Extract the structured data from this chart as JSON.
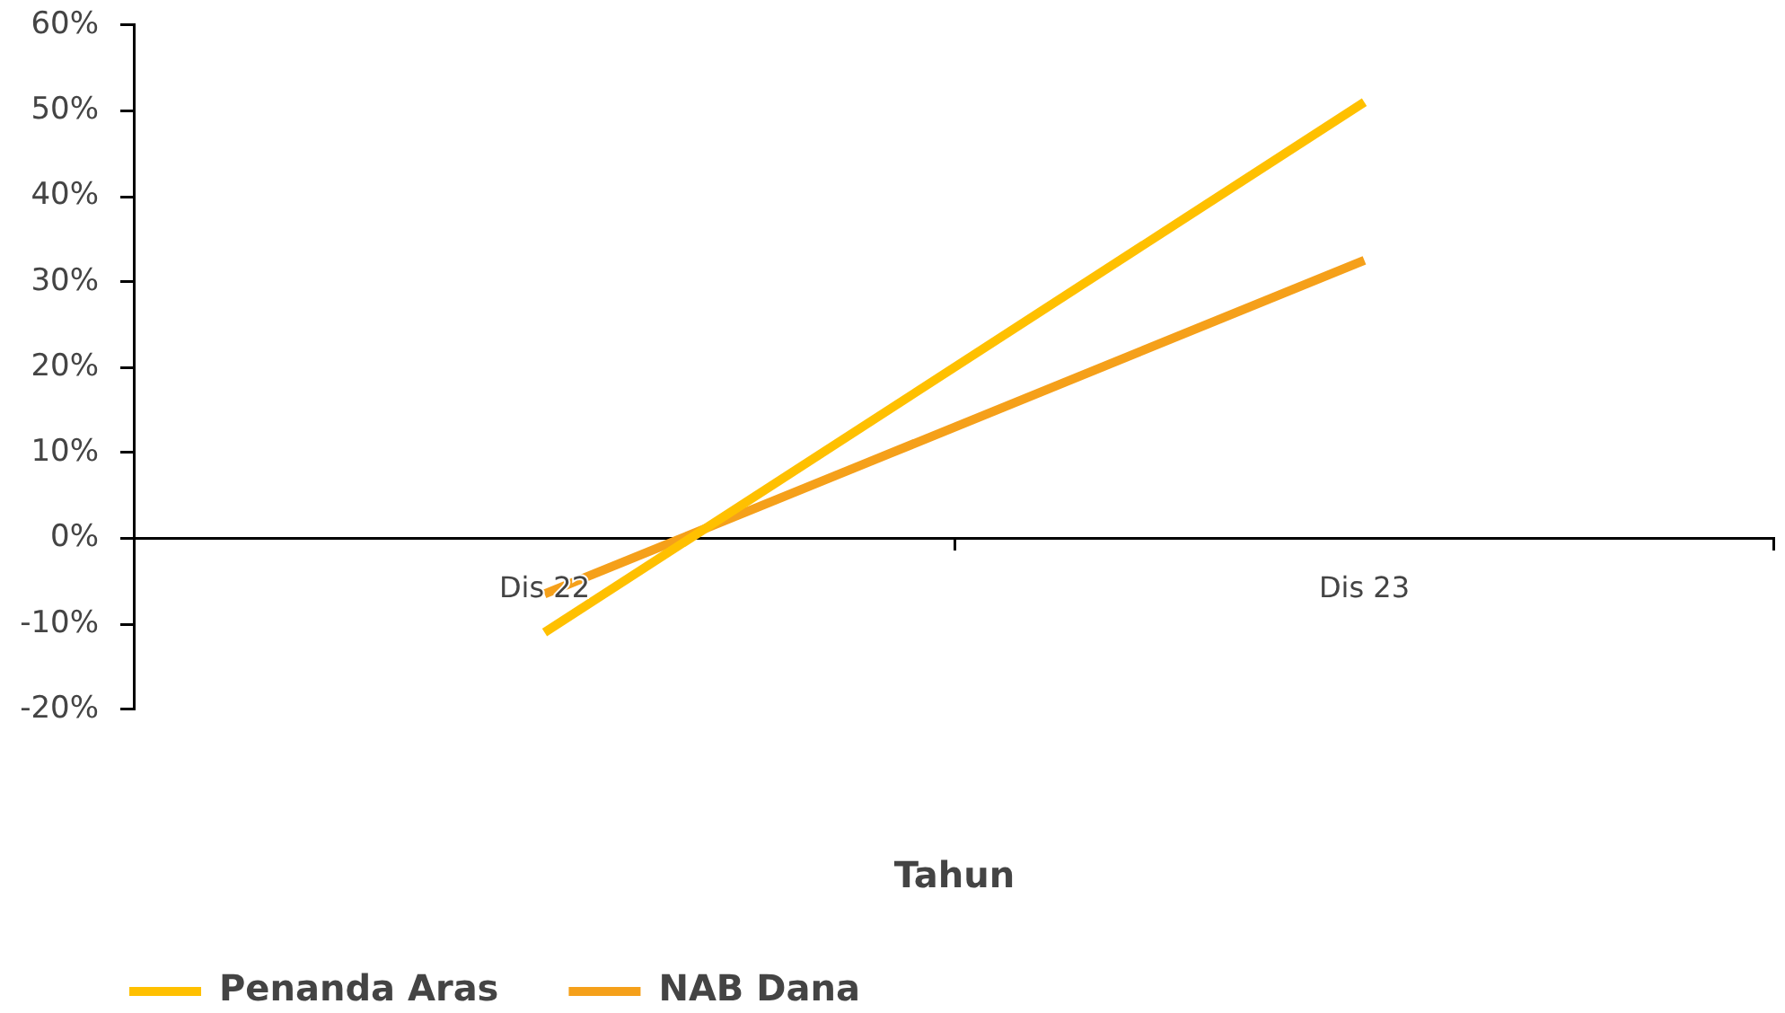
{
  "chart_data": {
    "type": "line",
    "xlabel": "Tahun",
    "categories": [
      "Dis 22",
      "Dis 23"
    ],
    "series": [
      {
        "name": "Penanda Aras",
        "color": "#ffc000",
        "values": [
          -11,
          51
        ]
      },
      {
        "name": "NAB Dana",
        "color": "#f5a01a",
        "values": [
          -6.5,
          32.5
        ]
      }
    ],
    "ylim": [
      -20,
      60
    ],
    "yticks": [
      {
        "value": -20,
        "label": "-20%"
      },
      {
        "value": -10,
        "label": "-10%"
      },
      {
        "value": 0,
        "label": "0%"
      },
      {
        "value": 10,
        "label": "10%"
      },
      {
        "value": 20,
        "label": "20%"
      },
      {
        "value": 30,
        "label": "30%"
      },
      {
        "value": 40,
        "label": "40%"
      },
      {
        "value": 50,
        "label": "50%"
      },
      {
        "value": 60,
        "label": "60%"
      }
    ],
    "grid": false,
    "legend": "bottom left",
    "marker": "none",
    "line_style": "solid"
  }
}
